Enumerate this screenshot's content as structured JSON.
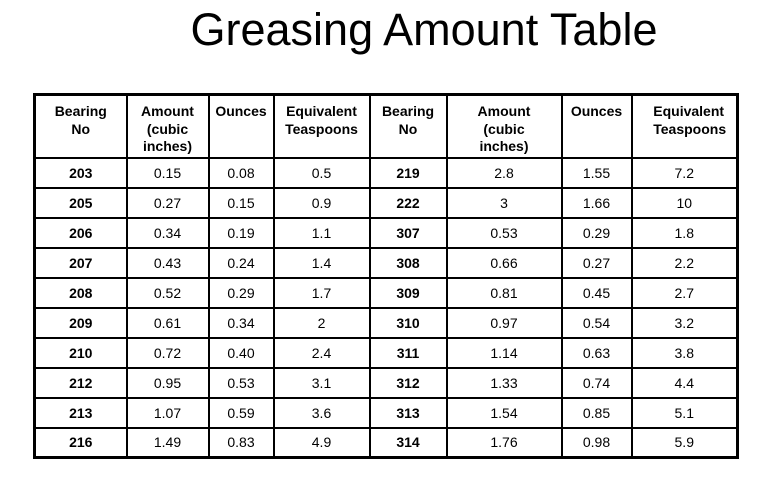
{
  "page": {
    "title": "Greasing Amount Table"
  },
  "table": {
    "header_labels": [
      "Bearing No",
      "Amount (cubic inches)",
      "Ounces",
      "Equivalent Teaspoons"
    ],
    "rows": [
      [
        "203",
        "0.15",
        "0.08",
        "0.5",
        "219",
        "2.8",
        "1.55",
        "7.2"
      ],
      [
        "205",
        "0.27",
        "0.15",
        "0.9",
        "222",
        "3",
        "1.66",
        "10"
      ],
      [
        "206",
        "0.34",
        "0.19",
        "1.1",
        "307",
        "0.53",
        "0.29",
        "1.8"
      ],
      [
        "207",
        "0.43",
        "0.24",
        "1.4",
        "308",
        "0.66",
        "0.27",
        "2.2"
      ],
      [
        "208",
        "0.52",
        "0.29",
        "1.7",
        "309",
        "0.81",
        "0.45",
        "2.7"
      ],
      [
        "209",
        "0.61",
        "0.34",
        "2",
        "310",
        "0.97",
        "0.54",
        "3.2"
      ],
      [
        "210",
        "0.72",
        "0.40",
        "2.4",
        "311",
        "1.14",
        "0.63",
        "3.8"
      ],
      [
        "212",
        "0.95",
        "0.53",
        "3.1",
        "312",
        "1.33",
        "0.74",
        "4.4"
      ],
      [
        "213",
        "1.07",
        "0.59",
        "3.6",
        "313",
        "1.54",
        "0.85",
        "5.1"
      ],
      [
        "216",
        "1.49",
        "0.83",
        "4.9",
        "314",
        "1.76",
        "0.98",
        "5.9"
      ]
    ]
  },
  "colors": {
    "text": "#000000",
    "background": "#ffffff",
    "border": "#000000"
  }
}
